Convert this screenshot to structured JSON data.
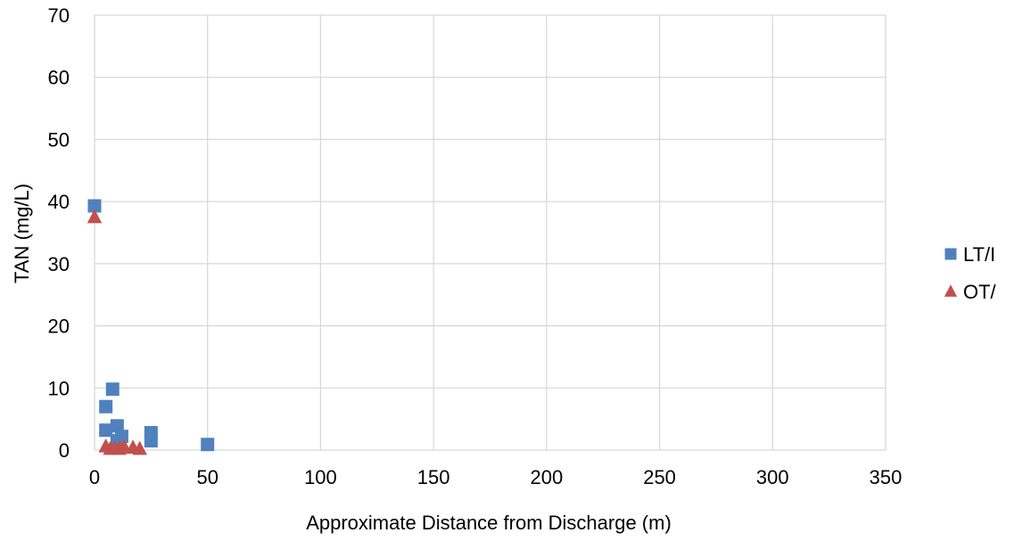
{
  "chart_data": {
    "type": "scatter",
    "title": "",
    "xlabel": "Approximate Distance from Discharge (m)",
    "ylabel": "TAN (mg/L)",
    "xlim": [
      0,
      350
    ],
    "ylim": [
      0,
      70
    ],
    "x_ticks": [
      "0",
      "50",
      "100",
      "150",
      "200",
      "250",
      "300",
      "350"
    ],
    "y_ticks": [
      "0",
      "10",
      "20",
      "30",
      "40",
      "50",
      "60",
      "70"
    ],
    "grid": true,
    "legend_position": "right",
    "series": [
      {
        "name": "LT/I",
        "marker": "square",
        "color": "#4f81bd",
        "points": [
          {
            "x": 0,
            "y": 39.3
          },
          {
            "x": 5,
            "y": 7.0
          },
          {
            "x": 5,
            "y": 3.2
          },
          {
            "x": 8,
            "y": 9.8
          },
          {
            "x": 10,
            "y": 3.9
          },
          {
            "x": 10,
            "y": 1.5
          },
          {
            "x": 12,
            "y": 2.2
          },
          {
            "x": 25,
            "y": 2.8
          },
          {
            "x": 25,
            "y": 1.5
          },
          {
            "x": 50,
            "y": 0.9
          }
        ]
      },
      {
        "name": "OT/",
        "marker": "triangle",
        "color": "#c0504d",
        "points": [
          {
            "x": 0,
            "y": 37.5
          },
          {
            "x": 5,
            "y": 0.6
          },
          {
            "x": 7,
            "y": 0.2
          },
          {
            "x": 9,
            "y": 0.3
          },
          {
            "x": 11,
            "y": 0.2
          },
          {
            "x": 13,
            "y": 0.6
          },
          {
            "x": 17,
            "y": 0.4
          },
          {
            "x": 20,
            "y": 0.2
          }
        ]
      }
    ]
  }
}
